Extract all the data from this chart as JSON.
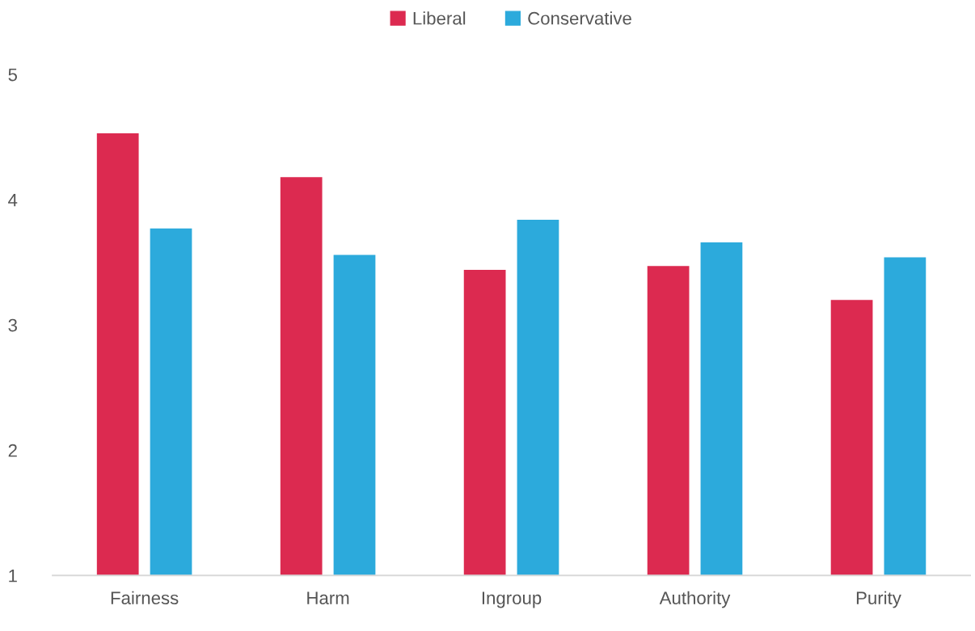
{
  "chart_data": {
    "type": "bar",
    "categories": [
      "Fairness",
      "Harm",
      "Ingroup",
      "Authority",
      "Purity"
    ],
    "series": [
      {
        "name": "Liberal",
        "color": "#dc2a50",
        "values": [
          4.53,
          4.18,
          3.44,
          3.47,
          3.2
        ]
      },
      {
        "name": "Conservative",
        "color": "#2caadc",
        "values": [
          3.77,
          3.56,
          3.84,
          3.66,
          3.54
        ]
      }
    ],
    "ylim": [
      1,
      5
    ],
    "yticks": [
      1,
      2,
      3,
      4,
      5
    ],
    "grid": false,
    "legend": "top"
  }
}
